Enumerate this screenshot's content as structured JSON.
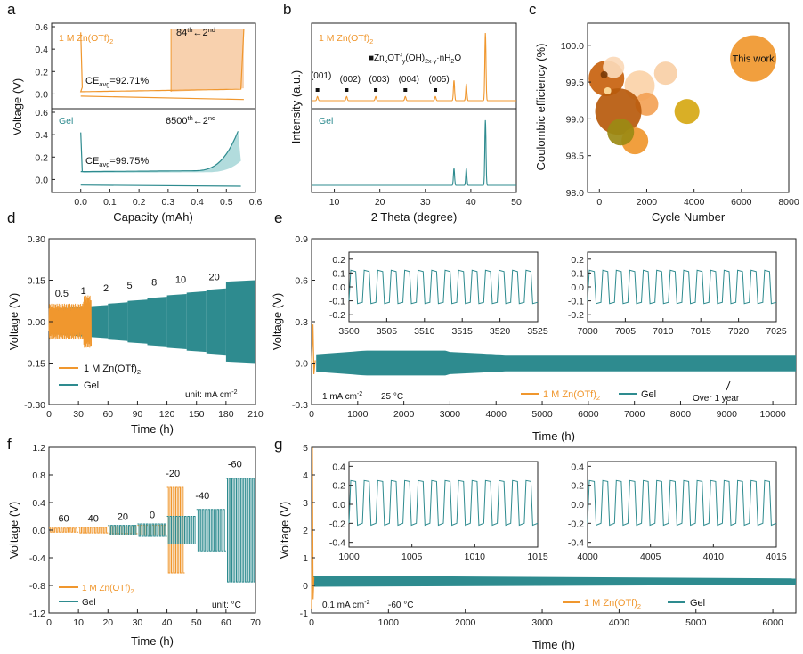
{
  "colors": {
    "orange": "#f0972e",
    "teal": "#2e8b8f",
    "axis": "#222222"
  },
  "panel_letters": [
    "a",
    "b",
    "c",
    "d",
    "e",
    "f",
    "g"
  ],
  "chart_data": [
    {
      "id": "a",
      "type": "line",
      "panel_label": "a",
      "xlabel": "Capacity (mAh)",
      "ylabel": "Voltage (V)",
      "xlim": [
        -0.1,
        0.6
      ],
      "xticks": [
        "0.0",
        "0.1",
        "0.2",
        "0.3",
        "0.4",
        "0.5",
        "0.6"
      ],
      "top": {
        "series_label": "1 M Zn(OTf)",
        "series_sub": "2",
        "annotation_cycles": "84",
        "annotation_cycles_sup": "th",
        "annotation_arrow": "←2",
        "annotation_arrow_sup": "nd",
        "ce_prefix": "CE",
        "ce_sub": "avg",
        "ce_value": "=92.71%",
        "ylim": [
          -0.1,
          0.6
        ],
        "yticks": [
          "0.6",
          "0.4",
          "0.2",
          "0.0"
        ]
      },
      "bottom": {
        "series_label": "Gel",
        "annotation_cycles": "6500",
        "annotation_cycles_sup": "th",
        "annotation_arrow": "←2",
        "annotation_arrow_sup": "nd",
        "ce_prefix": "CE",
        "ce_sub": "avg",
        "ce_value": "=99.75%",
        "ylim": [
          -0.1,
          0.6
        ],
        "yticks": [
          "0.6",
          "0.4",
          "0.2",
          "0.0"
        ]
      }
    },
    {
      "id": "b",
      "type": "line",
      "panel_label": "b",
      "xlabel": "2 Theta (degree)",
      "ylabel": "Intensity (a.u.)",
      "xlim": [
        5,
        50
      ],
      "xticks": [
        "10",
        "20",
        "30",
        "40",
        "50"
      ],
      "top_label": "1 M Zn(OTf)",
      "top_label_sub": "2",
      "bottom_label": "Gel",
      "legend_square": "■",
      "legend_text": "Zn",
      "legend_text_sub1": "x",
      "legend_text_mid": "OTf",
      "legend_text_sub2": "y",
      "legend_text_mid2": "(OH)",
      "legend_text_sub3": "2x-y",
      "legend_text_end": "·nH",
      "legend_text_sub4": "2",
      "legend_text_tail": "O",
      "peak_labels": [
        "(001)",
        "(002)",
        "(003)",
        "(004)",
        "(005)"
      ],
      "peak_positions": [
        6.3,
        12.7,
        19.1,
        25.6,
        32.2
      ],
      "top_peaks": [
        [
          36.3,
          0.3
        ],
        [
          39.0,
          0.25
        ],
        [
          43.2,
          1.0
        ]
      ],
      "bottom_peaks": [
        [
          36.3,
          0.22
        ],
        [
          39.0,
          0.22
        ],
        [
          43.2,
          0.85
        ]
      ]
    },
    {
      "id": "c",
      "type": "scatter",
      "panel_label": "c",
      "xlabel": "Cycle Number",
      "ylabel": "Coulombic efficiency (%)",
      "xlim": [
        -500,
        8000
      ],
      "ylim": [
        98.0,
        100.3
      ],
      "xticks": [
        "0",
        "2000",
        "4000",
        "6000",
        "8000"
      ],
      "yticks": [
        "98.0",
        "98.5",
        "99.0",
        "99.5",
        "100.0"
      ],
      "this_work_label": "This work",
      "points": [
        {
          "x": 6500,
          "y": 99.82,
          "r": 26,
          "color": "#f0972e"
        },
        {
          "x": 300,
          "y": 99.55,
          "r": 20,
          "color": "#c8620e"
        },
        {
          "x": 600,
          "y": 99.7,
          "r": 12,
          "color": "#fbd9b8"
        },
        {
          "x": 1700,
          "y": 99.45,
          "r": 17,
          "color": "#fbd2a8"
        },
        {
          "x": 2800,
          "y": 99.62,
          "r": 13,
          "color": "#f8cfa6"
        },
        {
          "x": 2000,
          "y": 99.2,
          "r": 13,
          "color": "#f3a256"
        },
        {
          "x": 800,
          "y": 99.1,
          "r": 26,
          "color": "#b75a0c"
        },
        {
          "x": 1500,
          "y": 98.7,
          "r": 15,
          "color": "#f0972e"
        },
        {
          "x": 3700,
          "y": 99.1,
          "r": 14,
          "color": "#d6a814"
        },
        {
          "x": 900,
          "y": 98.82,
          "r": 15,
          "color": "#9b8a14"
        },
        {
          "x": 200,
          "y": 99.6,
          "r": 4,
          "color": "#7a3a06"
        },
        {
          "x": 350,
          "y": 99.38,
          "r": 4,
          "color": "#ffe0a0"
        }
      ]
    },
    {
      "id": "d",
      "type": "line",
      "panel_label": "d",
      "xlabel": "Time (h)",
      "ylabel": "Voltage (V)",
      "xlim": [
        0,
        210
      ],
      "ylim": [
        -0.3,
        0.3
      ],
      "xticks": [
        "0",
        "30",
        "60",
        "90",
        "120",
        "150",
        "180",
        "210"
      ],
      "yticks": [
        "0.30",
        "0.15",
        "0.00",
        "-0.15",
        "-0.30"
      ],
      "rate_labels": [
        "0.5",
        "1",
        "2",
        "5",
        "8",
        "10",
        "20"
      ],
      "rate_label_x": [
        13,
        35,
        58,
        82,
        107,
        134,
        168
      ],
      "legend": [
        "1 M Zn(OTf)",
        "Gel"
      ],
      "legend_sub": "2",
      "unit_note": "unit: mA cm",
      "unit_note_sup": "-2"
    },
    {
      "id": "e",
      "type": "line",
      "panel_label": "e",
      "xlabel": "Time (h)",
      "ylabel": "Voltage (V)",
      "xlim": [
        0,
        10500
      ],
      "ylim": [
        -0.3,
        0.9
      ],
      "xticks": [
        "0",
        "1000",
        "2000",
        "3000",
        "4000",
        "5000",
        "6000",
        "7000",
        "8000",
        "9000",
        "10000"
      ],
      "yticks": [
        "0.9",
        "0.6",
        "0.3",
        "0.0",
        "-0.3"
      ],
      "condition": "1 mA cm",
      "condition_sup": "-2",
      "temperature": "25 °C",
      "legend": [
        "1 M Zn(OTf)",
        "Gel"
      ],
      "legend_sub": "2",
      "note": "Over 1 year",
      "inset1": {
        "xticks": [
          "3500",
          "3505",
          "3510",
          "3515",
          "3520",
          "3525"
        ],
        "yticks": [
          "0.2",
          "0.1",
          "0.0",
          "-0.1",
          "-0.2"
        ]
      },
      "inset2": {
        "xticks": [
          "7000",
          "7005",
          "7010",
          "7015",
          "7020",
          "7025"
        ],
        "yticks": [
          "0.2",
          "0.1",
          "0.0",
          "-0.1",
          "-0.2"
        ]
      }
    },
    {
      "id": "f",
      "type": "line",
      "panel_label": "f",
      "xlabel": "Time (h)",
      "ylabel": "Voltage (V)",
      "xlim": [
        0,
        70
      ],
      "ylim": [
        -1.2,
        1.2
      ],
      "xticks": [
        "0",
        "10",
        "20",
        "30",
        "40",
        "50",
        "60",
        "70"
      ],
      "yticks": [
        "1.2",
        "0.8",
        "0.4",
        "0.0",
        "-0.4",
        "-0.8",
        "-1.2"
      ],
      "temp_labels": [
        "60",
        "40",
        "20",
        "0",
        "-20",
        "-40",
        "-60"
      ],
      "legend": [
        "1 M Zn(OTf)",
        "Gel"
      ],
      "legend_sub": "2",
      "unit_note": "unit: °C"
    },
    {
      "id": "g",
      "type": "line",
      "panel_label": "g",
      "xlabel": "Time (h)",
      "ylabel": "Voltage (V)",
      "xlim": [
        0,
        6300
      ],
      "ylim": [
        -1,
        5
      ],
      "xticks": [
        "0",
        "1000",
        "2000",
        "3000",
        "4000",
        "5000",
        "6000"
      ],
      "yticks": [
        "5",
        "4",
        "3",
        "2",
        "1",
        "0",
        "-1"
      ],
      "condition": "0.1 mA cm",
      "condition_sup": "-2",
      "temperature": "-60 °C",
      "legend": [
        "1 M Zn(OTf)",
        "Gel"
      ],
      "legend_sub": "2",
      "inset1": {
        "xticks": [
          "1000",
          "1005",
          "1010",
          "1015"
        ],
        "yticks": [
          "0.4",
          "0.2",
          "0.0",
          "-0.2",
          "-0.4"
        ]
      },
      "inset2": {
        "xticks": [
          "4000",
          "4005",
          "4010",
          "4015"
        ],
        "yticks": [
          "0.4",
          "0.2",
          "0.0",
          "-0.2",
          "-0.4"
        ]
      }
    }
  ]
}
